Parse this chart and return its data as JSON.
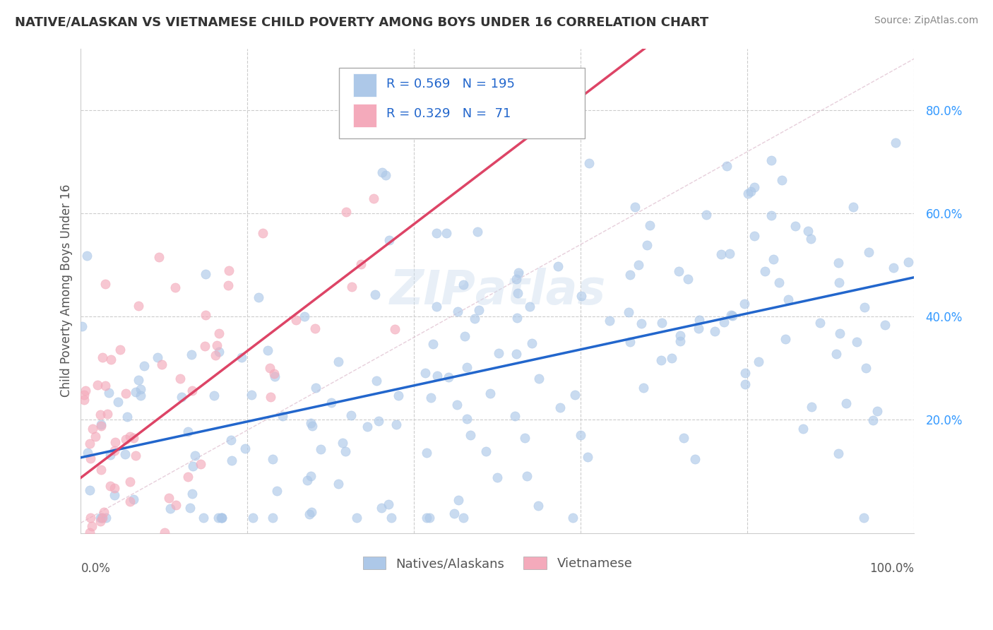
{
  "title": "NATIVE/ALASKAN VS VIETNAMESE CHILD POVERTY AMONG BOYS UNDER 16 CORRELATION CHART",
  "source": "Source: ZipAtlas.com",
  "ylabel": "Child Poverty Among Boys Under 16",
  "xlim": [
    0.0,
    1.0
  ],
  "ylim": [
    -0.02,
    0.92
  ],
  "blue_R": "0.569",
  "blue_N": "195",
  "pink_R": "0.329",
  "pink_N": "71",
  "blue_color": "#adc8e8",
  "pink_color": "#f4aabb",
  "blue_line_color": "#2266cc",
  "pink_line_color": "#dd4466",
  "legend_blue_label": "Natives/Alaskans",
  "legend_pink_label": "Vietnamese",
  "watermark_text": "ZIPAtlas",
  "background_color": "#ffffff",
  "grid_color": "#cccccc",
  "ytick_color": "#3399ff",
  "title_color": "#333333",
  "source_color": "#888888"
}
